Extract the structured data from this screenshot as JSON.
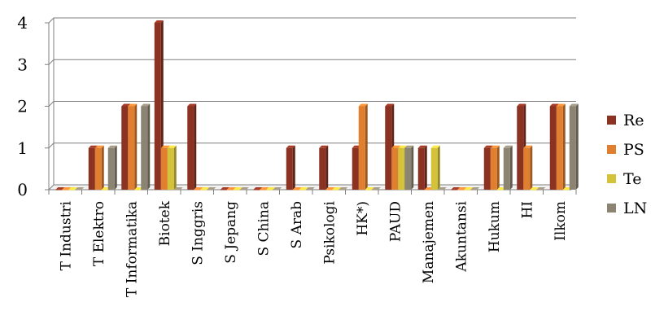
{
  "chart_data": {
    "type": "bar",
    "title": "",
    "xlabel": "",
    "ylabel": "",
    "ylim": [
      0,
      4
    ],
    "yticks": [
      0,
      1,
      2,
      3,
      4
    ],
    "grid": true,
    "legend_position": "right",
    "categories": [
      "T Industri",
      "T Elektro",
      "T Informatika",
      "Biotek",
      "S Inggris",
      "S Jepang",
      "S China",
      "S Arab",
      "Psikologi",
      "HK*)",
      "PAUD",
      "Manajemen",
      "Akuntansi",
      "Hukum",
      "HI",
      "Ilkom"
    ],
    "series": [
      {
        "name": "Re",
        "color": "#8B3222",
        "values": [
          0,
          1,
          2,
          4,
          2,
          0,
          0,
          1,
          1,
          1,
          2,
          1,
          0,
          1,
          2,
          2
        ]
      },
      {
        "name": "PS",
        "color": "#E07F30",
        "values": [
          0,
          1,
          2,
          1,
          0,
          0,
          0,
          0,
          0,
          2,
          1,
          0,
          0,
          1,
          1,
          2
        ]
      },
      {
        "name": "Te",
        "color": "#D4C23A",
        "values": [
          0,
          0,
          0,
          1,
          0,
          0,
          0,
          0,
          0,
          0,
          1,
          1,
          0,
          0,
          0,
          0
        ]
      },
      {
        "name": "LN",
        "color": "#8C8472",
        "values": [
          0,
          1,
          2,
          0,
          0,
          0,
          0,
          0,
          0,
          0,
          1,
          0,
          0,
          1,
          0,
          2
        ]
      }
    ]
  }
}
